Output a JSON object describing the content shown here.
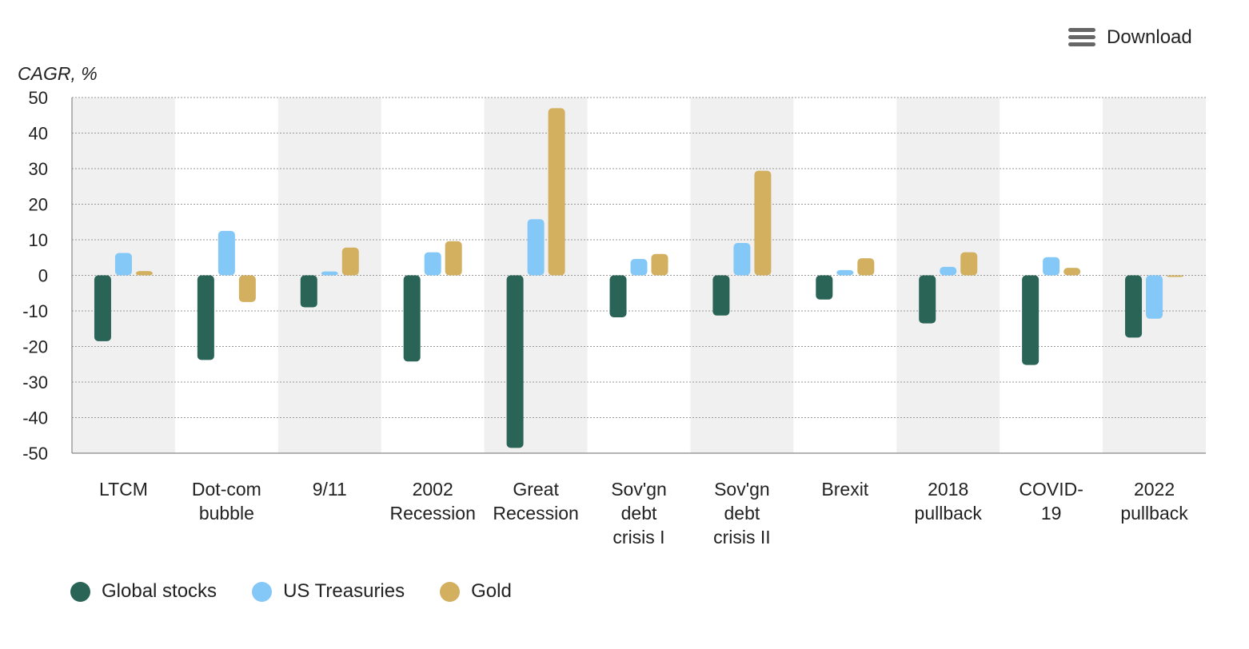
{
  "toolbar": {
    "download_label": "Download",
    "download_icon": "hamburger-menu-icon"
  },
  "chart_data": {
    "type": "bar",
    "ylabel": "CAGR, %",
    "ylim": [
      -50,
      50
    ],
    "yticks": [
      50,
      40,
      30,
      20,
      10,
      0,
      -10,
      -20,
      -30,
      -40,
      -50
    ],
    "grid": true,
    "gridStyle": "dotted",
    "alternatingBands": true,
    "legend_position": "bottom-left",
    "categories": [
      [
        "LTCM"
      ],
      [
        "Dot-com",
        "bubble"
      ],
      [
        "9/11"
      ],
      [
        "2002",
        "Recession"
      ],
      [
        "Great",
        "Recession"
      ],
      [
        "Sov'gn",
        "debt",
        "crisis I"
      ],
      [
        "Sov'gn",
        "debt",
        "crisis II"
      ],
      [
        "Brexit"
      ],
      [
        "2018",
        "pullback"
      ],
      [
        "COVID-",
        "19"
      ],
      [
        "2022",
        "pullback"
      ]
    ],
    "series": [
      {
        "name": "Global stocks",
        "color": "#2a6456",
        "values": [
          -18.5,
          -23.8,
          -9,
          -24.2,
          -48.5,
          -11.8,
          -11.3,
          -6.8,
          -13.5,
          -25.2,
          -17.5
        ]
      },
      {
        "name": "US Treasuries",
        "color": "#84c8f8",
        "values": [
          6.3,
          12.5,
          1.1,
          6.5,
          15.8,
          4.6,
          9.1,
          1.5,
          2.4,
          5.1,
          -12.2
        ]
      },
      {
        "name": "Gold",
        "color": "#d3b060",
        "values": [
          1.2,
          -7.5,
          7.8,
          9.6,
          47,
          6,
          29.4,
          4.8,
          6.5,
          2.1,
          -0.3
        ]
      }
    ]
  }
}
